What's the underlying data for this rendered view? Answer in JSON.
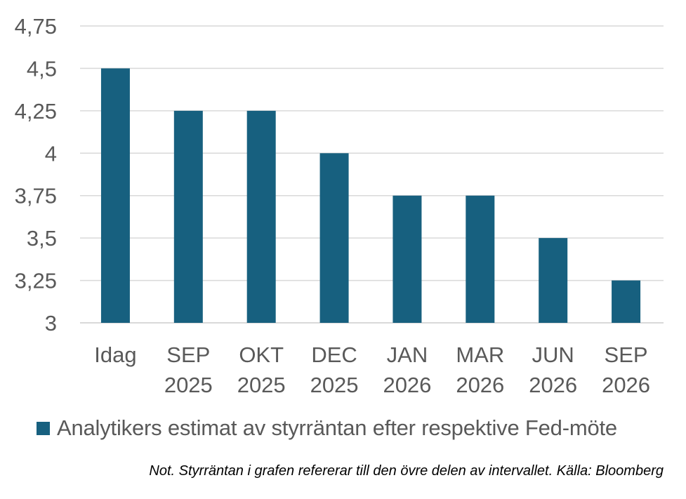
{
  "chart_data": {
    "type": "bar",
    "categories": [
      [
        "Idag"
      ],
      [
        "SEP",
        "2025"
      ],
      [
        "OKT",
        "2025"
      ],
      [
        "DEC",
        "2025"
      ],
      [
        "JAN",
        "2026"
      ],
      [
        "MAR",
        "2026"
      ],
      [
        "JUN",
        "2026"
      ],
      [
        "SEP",
        "2026"
      ]
    ],
    "series": [
      {
        "name": "Analytikers estimat av styrräntan efter respektive Fed-möte",
        "values": [
          4.5,
          4.25,
          4.25,
          4.0,
          3.75,
          3.75,
          3.5,
          3.25
        ],
        "color": "#17607f"
      }
    ],
    "ylim": [
      3,
      4.75
    ],
    "yticks": [
      3,
      3.25,
      3.5,
      3.75,
      4,
      4.25,
      4.5,
      4.75
    ],
    "ytick_labels": [
      "3",
      "3,25",
      "3,5",
      "3,75",
      "4",
      "4,25",
      "4,5",
      "4,75"
    ],
    "grid": true,
    "legend_position": "bottom-left",
    "footnote": "Not. Styrräntan i grafen refererar till den övre delen av intervallet. Källa: Bloomberg",
    "colors": {
      "grid": "#d9d9d9",
      "tick_text": "#595959",
      "footnote_text": "#000000"
    }
  }
}
